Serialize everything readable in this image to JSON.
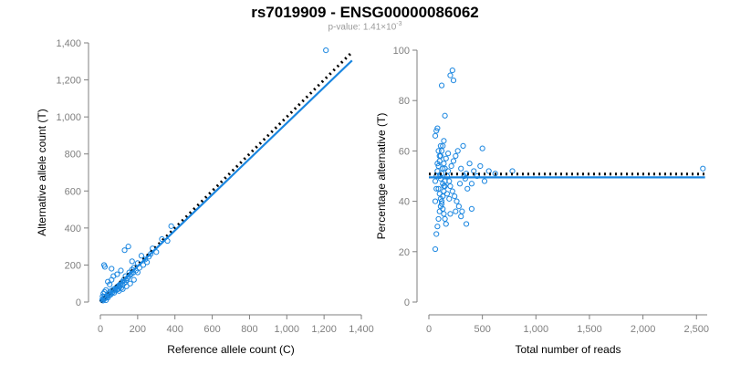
{
  "header": {
    "title": "rs7019909 - ENSG00000086062",
    "pvalue_prefix": "p-value: 1.41×10",
    "pvalue_exponent": "-3"
  },
  "colors": {
    "points": "#1a86e0",
    "fit_line": "#1a86e0",
    "reference_line": "#000000",
    "axis": "#7f7f7f"
  },
  "chart_data": [
    {
      "type": "scatter",
      "xlabel": "Reference allele count (C)",
      "ylabel": "Alternative allele count (T)",
      "xlim": [
        0,
        1400
      ],
      "ylim": [
        0,
        1400
      ],
      "x_ticks": [
        0,
        200,
        400,
        600,
        800,
        1000,
        1200,
        1400
      ],
      "x_tick_labels": [
        "0",
        "200",
        "400",
        "600",
        "800",
        "1,000",
        "1,200",
        "1,400"
      ],
      "y_ticks": [
        0,
        200,
        400,
        600,
        800,
        1000,
        1200,
        1400
      ],
      "y_tick_labels": [
        "0",
        "200",
        "400",
        "600",
        "800",
        "1,000",
        "1,200",
        "1,400"
      ],
      "points": [
        [
          10,
          12
        ],
        [
          14,
          8
        ],
        [
          18,
          20
        ],
        [
          20,
          15
        ],
        [
          24,
          30
        ],
        [
          28,
          22
        ],
        [
          30,
          10
        ],
        [
          34,
          28
        ],
        [
          38,
          35
        ],
        [
          40,
          24
        ],
        [
          44,
          42
        ],
        [
          48,
          36
        ],
        [
          50,
          52
        ],
        [
          55,
          40
        ],
        [
          58,
          60
        ],
        [
          62,
          48
        ],
        [
          65,
          55
        ],
        [
          70,
          68
        ],
        [
          74,
          50
        ],
        [
          78,
          72
        ],
        [
          80,
          62
        ],
        [
          85,
          78
        ],
        [
          88,
          66
        ],
        [
          92,
          84
        ],
        [
          96,
          70
        ],
        [
          100,
          90
        ],
        [
          104,
          82
        ],
        [
          108,
          98
        ],
        [
          112,
          76
        ],
        [
          118,
          110
        ],
        [
          120,
          92
        ],
        [
          125,
          120
        ],
        [
          130,
          104
        ],
        [
          135,
          140
        ],
        [
          140,
          118
        ],
        [
          145,
          128
        ],
        [
          150,
          135
        ],
        [
          155,
          160
        ],
        [
          160,
          146
        ],
        [
          165,
          152
        ],
        [
          170,
          175
        ],
        [
          175,
          158
        ],
        [
          180,
          186
        ],
        [
          190,
          170
        ],
        [
          200,
          210
        ],
        [
          210,
          185
        ],
        [
          220,
          250
        ],
        [
          240,
          230
        ],
        [
          260,
          245
        ],
        [
          280,
          290
        ],
        [
          300,
          270
        ],
        [
          330,
          340
        ],
        [
          360,
          330
        ],
        [
          380,
          410
        ],
        [
          20,
          200
        ],
        [
          24,
          190
        ],
        [
          60,
          180
        ],
        [
          110,
          170
        ],
        [
          90,
          150
        ],
        [
          130,
          280
        ],
        [
          150,
          300
        ],
        [
          40,
          110
        ],
        [
          60,
          120
        ],
        [
          50,
          95
        ],
        [
          30,
          65
        ],
        [
          16,
          45
        ],
        [
          12,
          30
        ],
        [
          22,
          55
        ],
        [
          70,
          140
        ],
        [
          100,
          60
        ],
        [
          120,
          70
        ],
        [
          140,
          85
        ],
        [
          160,
          100
        ],
        [
          180,
          120
        ],
        [
          200,
          160
        ],
        [
          230,
          200
        ],
        [
          250,
          215
        ],
        [
          270,
          260
        ],
        [
          170,
          220
        ],
        [
          1210,
          1360
        ]
      ],
      "fit_line": [
        [
          0,
          0
        ],
        [
          1350,
          1305
        ]
      ],
      "reference_line": [
        [
          0,
          0
        ],
        [
          1350,
          1350
        ]
      ]
    },
    {
      "type": "scatter",
      "xlabel": "Total number of reads",
      "ylabel": "Percentage alternative (T)",
      "xlim": [
        0,
        2600
      ],
      "ylim": [
        0,
        100
      ],
      "x_ticks": [
        0,
        500,
        1000,
        1500,
        2000,
        2500
      ],
      "x_tick_labels": [
        "0",
        "500",
        "1,000",
        "1,500",
        "2,000",
        "2,500"
      ],
      "y_ticks": [
        0,
        20,
        40,
        60,
        80,
        100
      ],
      "y_tick_labels": [
        "0",
        "20",
        "40",
        "60",
        "80",
        "100"
      ],
      "points": [
        [
          60,
          21
        ],
        [
          70,
          27
        ],
        [
          80,
          30
        ],
        [
          90,
          33
        ],
        [
          100,
          36
        ],
        [
          110,
          38
        ],
        [
          120,
          40
        ],
        [
          130,
          42
        ],
        [
          140,
          44
        ],
        [
          150,
          46
        ],
        [
          60,
          48
        ],
        [
          70,
          50
        ],
        [
          80,
          52
        ],
        [
          90,
          54
        ],
        [
          100,
          56
        ],
        [
          110,
          58
        ],
        [
          120,
          60
        ],
        [
          130,
          62
        ],
        [
          140,
          64
        ],
        [
          60,
          66
        ],
        [
          70,
          68
        ],
        [
          80,
          69
        ],
        [
          90,
          45
        ],
        [
          100,
          43
        ],
        [
          110,
          41
        ],
        [
          120,
          39
        ],
        [
          130,
          37
        ],
        [
          140,
          35
        ],
        [
          150,
          33
        ],
        [
          160,
          31
        ],
        [
          170,
          50
        ],
        [
          180,
          52
        ],
        [
          190,
          48
        ],
        [
          200,
          46
        ],
        [
          210,
          54
        ],
        [
          220,
          44
        ],
        [
          230,
          56
        ],
        [
          240,
          42
        ],
        [
          250,
          58
        ],
        [
          260,
          40
        ],
        [
          270,
          60
        ],
        [
          280,
          38
        ],
        [
          290,
          47
        ],
        [
          300,
          53
        ],
        [
          310,
          36
        ],
        [
          320,
          62
        ],
        [
          330,
          50
        ],
        [
          340,
          49
        ],
        [
          350,
          51
        ],
        [
          360,
          45
        ],
        [
          380,
          55
        ],
        [
          400,
          47
        ],
        [
          420,
          52
        ],
        [
          450,
          50
        ],
        [
          480,
          54
        ],
        [
          500,
          61
        ],
        [
          520,
          48
        ],
        [
          560,
          52
        ],
        [
          620,
          51
        ],
        [
          780,
          52
        ],
        [
          120,
          86
        ],
        [
          150,
          74
        ],
        [
          200,
          90
        ],
        [
          220,
          92
        ],
        [
          230,
          88
        ],
        [
          100,
          58
        ],
        [
          110,
          62
        ],
        [
          130,
          47
        ],
        [
          140,
          55
        ],
        [
          150,
          53
        ],
        [
          160,
          57
        ],
        [
          170,
          43
        ],
        [
          180,
          59
        ],
        [
          190,
          41
        ],
        [
          60,
          40
        ],
        [
          70,
          45
        ],
        [
          80,
          55
        ],
        [
          90,
          60
        ],
        [
          100,
          50
        ],
        [
          110,
          49
        ],
        [
          120,
          51
        ],
        [
          130,
          53
        ],
        [
          140,
          46
        ],
        [
          150,
          48
        ],
        [
          200,
          35
        ],
        [
          250,
          36
        ],
        [
          300,
          34
        ],
        [
          350,
          31
        ],
        [
          400,
          37
        ],
        [
          2560,
          53
        ]
      ],
      "fit_line": [
        [
          0,
          49.5
        ],
        [
          2580,
          49.5
        ]
      ],
      "reference_line": [
        [
          0,
          50.8
        ],
        [
          2580,
          50.8
        ]
      ]
    }
  ]
}
